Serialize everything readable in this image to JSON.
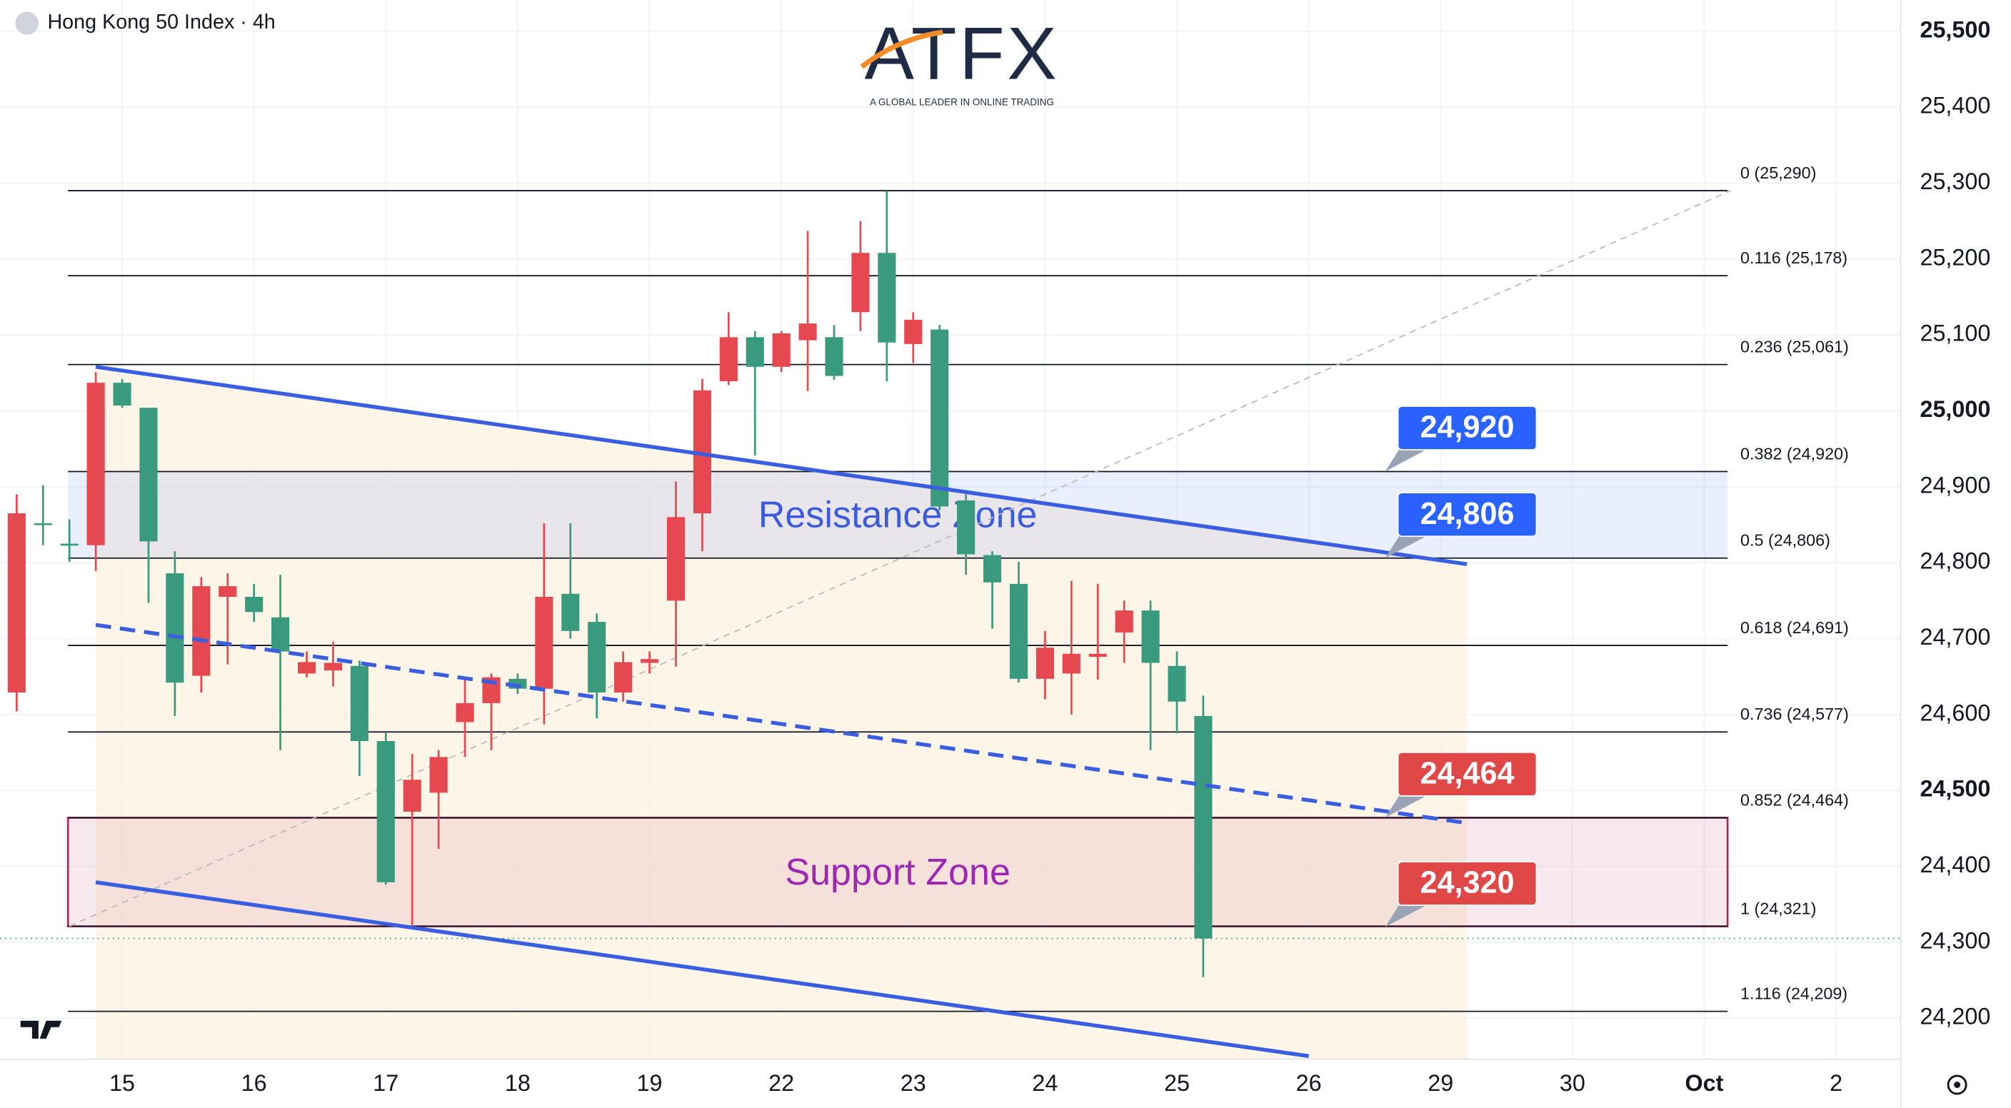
{
  "header": {
    "logo": "ATFX",
    "tagline": "A GLOBAL LEADER IN ONLINE TRADING"
  },
  "chart_data": {
    "type": "candlestick",
    "title": "Hong Kong 50 Index · 4h",
    "up_color": "#e5494f",
    "down_color": "#3a9a7e",
    "categories": [
      null,
      null,
      null,
      null,
      "15",
      null,
      null,
      null,
      null,
      "16",
      null,
      null,
      null,
      null,
      "17",
      null,
      null,
      null,
      null,
      "18",
      null,
      null,
      null,
      null,
      "19",
      null,
      null,
      null,
      null,
      "22",
      null,
      null,
      null,
      null,
      "23",
      null,
      null,
      null,
      null,
      "24",
      null,
      null,
      null,
      null,
      "25",
      null,
      null,
      null,
      null,
      "26",
      null,
      null,
      null,
      null,
      "29",
      null,
      null,
      null,
      null,
      "30",
      null,
      null,
      null,
      null,
      "Oct",
      null,
      null,
      null,
      null,
      "2",
      null,
      null
    ],
    "open": [
      24629,
      24852,
      24825,
      24823,
      25037,
      25004,
      24786,
      24651,
      24755,
      24755,
      24728,
      24654,
      24658,
      24664,
      24565,
      24472,
      24497,
      24590,
      24615,
      24647,
      24634,
      24759,
      24722,
      24629,
      24668,
      24750,
      24865,
      25039,
      25097,
      25058,
      25093,
      25097,
      25130,
      25208,
      25088,
      25107,
      24882,
      24810,
      24772,
      24647,
      24654,
      24676,
      24708,
      24737,
      24664,
      24598,
      null,
      null,
      null,
      null,
      null,
      null,
      null,
      null,
      null,
      null,
      null,
      null,
      null,
      null,
      null,
      null,
      null,
      null,
      null,
      null,
      null,
      null,
      null,
      null,
      null,
      null
    ],
    "high": [
      24890,
      24902,
      24857,
      25051,
      25042,
      25004,
      24815,
      24781,
      24786,
      24772,
      24784,
      24683,
      24696,
      24671,
      24576,
      24548,
      24553,
      24649,
      24654,
      24654,
      24852,
      24852,
      24733,
      24683,
      24683,
      24907,
      25042,
      25130,
      25105,
      25105,
      25237,
      25113,
      25250,
      25290,
      25130,
      25113,
      24890,
      24815,
      24801,
      24710,
      24776,
      24772,
      24750,
      24750,
      24683,
      24625,
      null,
      null,
      null,
      null,
      null,
      null,
      null,
      null,
      null,
      null,
      null,
      null,
      null,
      null,
      null,
      null,
      null,
      null,
      null,
      null,
      null,
      null,
      null,
      null,
      null,
      null
    ],
    "low": [
      24604,
      24823,
      24801,
      24789,
      25004,
      24747,
      24598,
      24629,
      24666,
      24722,
      24553,
      24649,
      24637,
      24519,
      24376,
      24321,
      24423,
      24544,
      24553,
      24627,
      24587,
      24700,
      24595,
      24617,
      24654,
      24663,
      24815,
      25034,
      24941,
      25051,
      25026,
      25041,
      25105,
      25039,
      25063,
      24869,
      24784,
      24713,
      24642,
      24620,
      24600,
      24646,
      24668,
      24553,
      24575,
      24254,
      null,
      null,
      null,
      null,
      null,
      null,
      null,
      null,
      null,
      null,
      null,
      null,
      null,
      null,
      null,
      null,
      null,
      null,
      null,
      null,
      null,
      null,
      null,
      null,
      null,
      null
    ],
    "close": [
      24865,
      24850,
      24823,
      25037,
      25007,
      24828,
      24642,
      24769,
      24769,
      24735,
      24683,
      24669,
      24668,
      24565,
      24379,
      24514,
      24544,
      24615,
      24649,
      24634,
      24755,
      24710,
      24629,
      24669,
      24673,
      24860,
      25027,
      25097,
      25058,
      25102,
      25115,
      25046,
      25208,
      25090,
      25120,
      24874,
      24811,
      24774,
      24647,
      24688,
      24680,
      24680,
      24737,
      24668,
      24617,
      24305,
      null,
      null,
      null,
      null,
      null,
      null,
      null,
      null,
      null,
      null,
      null,
      null,
      null,
      null,
      null,
      null,
      null,
      null,
      null,
      null,
      null,
      null,
      null,
      null,
      null,
      null
    ],
    "ylim": [
      24146,
      25541
    ],
    "yticks": [
      {
        "value": 24200,
        "label": "24,200"
      },
      {
        "value": 24300,
        "label": "24,300"
      },
      {
        "value": 24400,
        "label": "24,400"
      },
      {
        "value": 24500,
        "label": "24,500"
      },
      {
        "value": 24600,
        "label": "24,600"
      },
      {
        "value": 24700,
        "label": "24,700"
      },
      {
        "value": 24800,
        "label": "24,800"
      },
      {
        "value": 24900,
        "label": "24,900"
      },
      {
        "value": 25000,
        "label": "25,000"
      },
      {
        "value": 25100,
        "label": "25,100"
      },
      {
        "value": 25200,
        "label": "25,200"
      },
      {
        "value": 25300,
        "label": "25,300"
      },
      {
        "value": 25400,
        "label": "25,400"
      },
      {
        "value": 25500,
        "label": "25,500"
      }
    ],
    "grid": true,
    "fib_levels": [
      {
        "value": 25290,
        "label": "0 (25,290)"
      },
      {
        "value": 25178,
        "label": "0.116 (25,178)"
      },
      {
        "value": 25061,
        "label": "0.236 (25,061)"
      },
      {
        "value": 24920,
        "label": "0.382 (24,920)"
      },
      {
        "value": 24806,
        "label": "0.5 (24,806)"
      },
      {
        "value": 24691,
        "label": "0.618 (24,691)"
      },
      {
        "value": 24577,
        "label": "0.736 (24,577)"
      },
      {
        "value": 24464,
        "label": "0.852 (24,464)"
      },
      {
        "value": 24321,
        "label": "1 (24,321)"
      },
      {
        "value": 24209,
        "label": "1.116 (24,209)"
      }
    ],
    "zones": [
      {
        "name": "Resistance Zone",
        "from": 24806,
        "to": 24920,
        "color": "#2962ff",
        "text_color": "#3b5bdb"
      },
      {
        "name": "Support Zone",
        "from": 24321,
        "to": 24464,
        "color": "#b0285a",
        "text_color": "#9c27b0"
      }
    ],
    "price_tags": [
      {
        "value": 24920,
        "label": "24,920",
        "color": "#2962ff"
      },
      {
        "value": 24806,
        "label": "24,806",
        "color": "#2962ff"
      },
      {
        "value": 24464,
        "label": "24,464",
        "color": "#e04848"
      },
      {
        "value": 24320,
        "label": "24,320",
        "color": "#e04848"
      }
    ],
    "trendlines": [
      {
        "style": "solid",
        "color": "#3a5ee0",
        "x": [
          3,
          55
        ],
        "y": [
          25058,
          24798
        ]
      },
      {
        "style": "dashed",
        "color": "#3a5ee0",
        "x": [
          3,
          55
        ],
        "y": [
          24718,
          24457
        ]
      },
      {
        "style": "solid",
        "color": "#3a5ee0",
        "x": [
          3,
          49
        ],
        "y": [
          24379,
          24150
        ]
      },
      {
        "style": "dotted",
        "color": "#bbbbbb",
        "x": [
          2,
          65
        ],
        "y": [
          24321,
          25290
        ]
      }
    ]
  }
}
